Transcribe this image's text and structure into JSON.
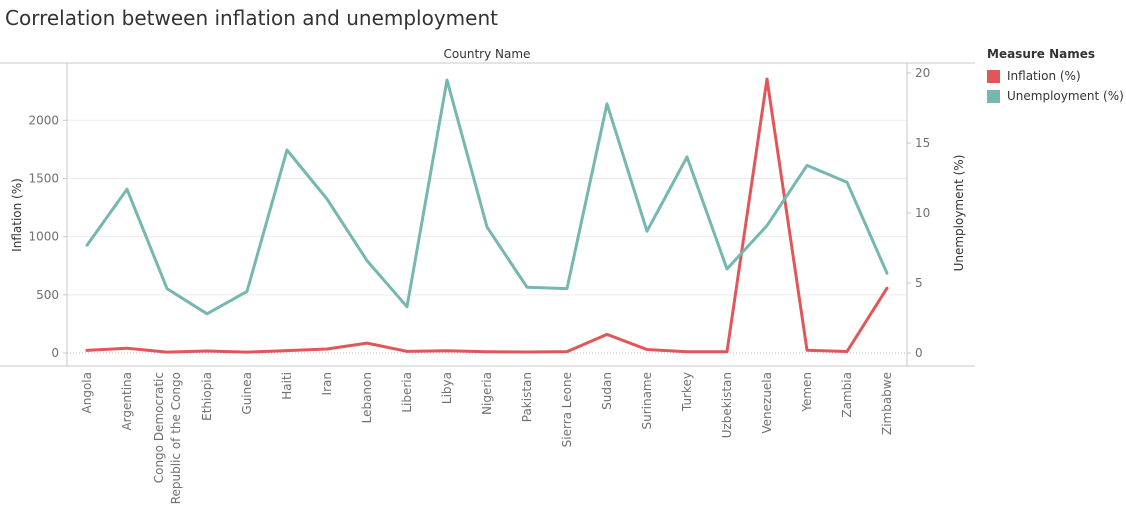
{
  "chart_data": {
    "type": "line",
    "title": "Correlation between inflation and unemployment",
    "x_header": "Country Name",
    "categories": [
      "Angola",
      "Argentina",
      "Congo Democratic Republic of the Congo",
      "Ethiopia",
      "Guinea",
      "Haiti",
      "Iran",
      "Lebanon",
      "Liberia",
      "Libya",
      "Nigeria",
      "Pakistan",
      "Sierra Leone",
      "Sudan",
      "Suriname",
      "Turkey",
      "Uzbekistan",
      "Venezuela",
      "Yemen",
      "Zambia",
      "Zimbabwe"
    ],
    "category_labels": [
      [
        "Angola"
      ],
      [
        "Argentina"
      ],
      [
        "Congo Democratic",
        "Republic of the Congo"
      ],
      [
        "Ethiopia"
      ],
      [
        "Guinea"
      ],
      [
        "Haiti"
      ],
      [
        "Iran"
      ],
      [
        "Lebanon"
      ],
      [
        "Liberia"
      ],
      [
        "Libya"
      ],
      [
        "Nigeria"
      ],
      [
        "Pakistan"
      ],
      [
        "Sierra Leone"
      ],
      [
        "Sudan"
      ],
      [
        "Suriname"
      ],
      [
        "Turkey"
      ],
      [
        "Uzbekistan"
      ],
      [
        "Venezuela"
      ],
      [
        "Yemen"
      ],
      [
        "Zambia"
      ],
      [
        "Zimbabwe"
      ]
    ],
    "series": [
      {
        "name": "Inflation (%)",
        "axis": "left",
        "color": "#e15759",
        "values": [
          22,
          41,
          8,
          17,
          8,
          21,
          34,
          85,
          14,
          20,
          11,
          9,
          12,
          160,
          30,
          11,
          11,
          2355,
          24,
          13,
          557
        ]
      },
      {
        "name": "Unemployment (%)",
        "axis": "right",
        "color": "#76b7b2",
        "values": [
          7.7,
          11.7,
          4.6,
          2.8,
          4.4,
          14.5,
          11.0,
          6.6,
          3.3,
          19.5,
          9.0,
          4.7,
          4.6,
          17.8,
          8.7,
          14.0,
          6.0,
          9.1,
          13.4,
          12.2,
          5.7
        ]
      }
    ],
    "ylabel": "Inflation (%)",
    "y2label": "Unemployment (%)",
    "ylim": [
      0,
      2350
    ],
    "y2lim": [
      0,
      20
    ],
    "yticks": [
      0,
      500,
      1000,
      1500,
      2000
    ],
    "y2ticks": [
      0,
      5,
      10,
      15,
      20
    ],
    "grid": true,
    "legend_title": "Measure Names",
    "legend_position": "right"
  }
}
